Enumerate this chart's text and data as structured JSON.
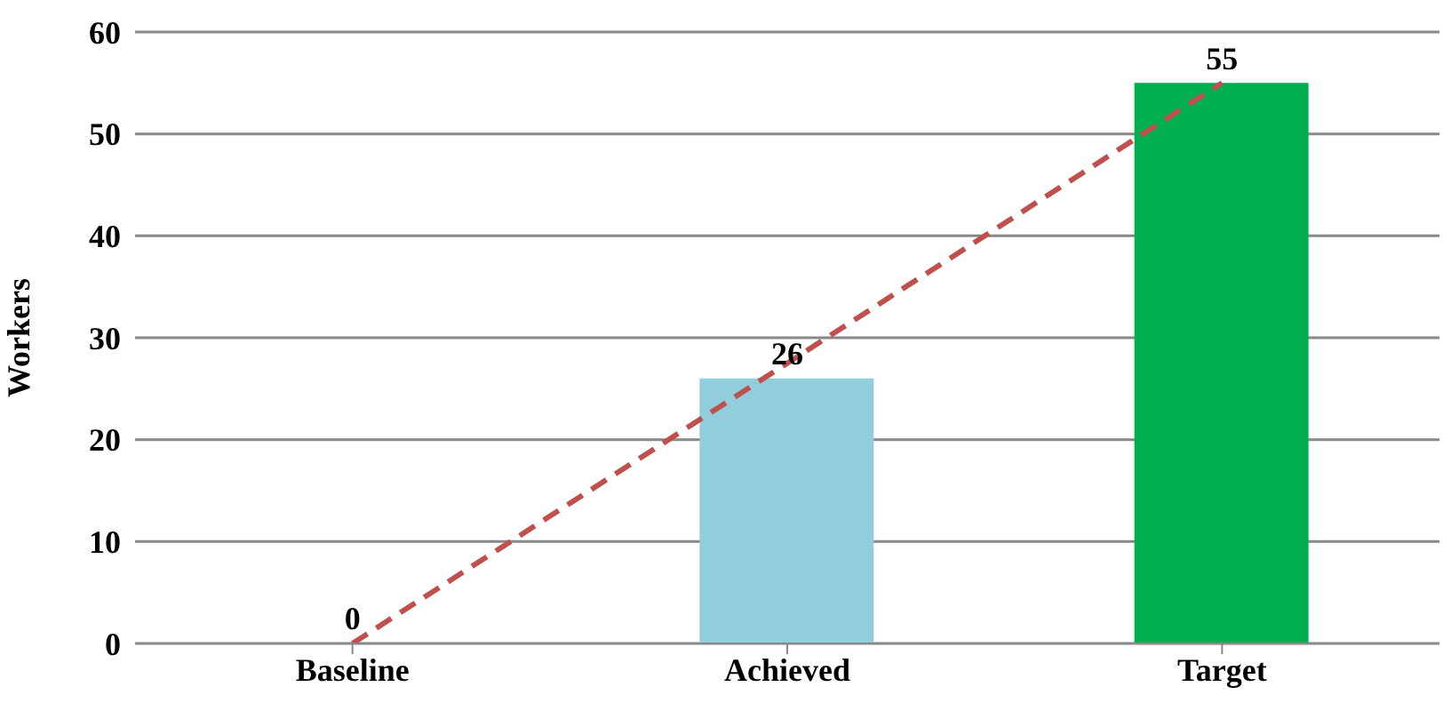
{
  "chart_data": {
    "type": "bar",
    "ylabel": "Workers",
    "categories": [
      "Baseline",
      "Achieved",
      "Target"
    ],
    "series": [
      {
        "values": [
          0,
          26,
          55
        ],
        "colors": [
          "#4f81bd",
          "#92cddc",
          "#00b050"
        ],
        "data_labels": true
      },
      {
        "type": "line",
        "values": [
          0,
          27.5,
          55
        ],
        "color": "#c0504d",
        "line_style": "dashed",
        "marker": "none"
      }
    ],
    "ylim": [
      0,
      60
    ],
    "yticks": [
      0,
      10,
      20,
      30,
      40,
      50,
      60
    ],
    "grid": "y",
    "legend": false
  }
}
